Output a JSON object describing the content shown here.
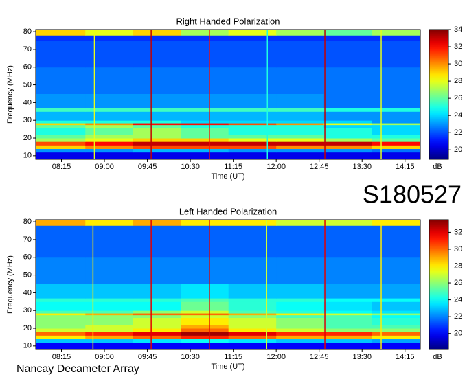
{
  "labels": {
    "event_id": "S180527",
    "source": "Nancay Decameter Array"
  },
  "chart_data": [
    {
      "type": "heatmap",
      "title": "Right Handed Polarization",
      "x_label": "Time (UT)",
      "y_label": "Frequency (MHz)",
      "colorbar_label": "dB",
      "xlim": [
        468,
        871
      ],
      "ylim": [
        8,
        81.2
      ],
      "clim": [
        18.9,
        34
      ],
      "xticks": [
        {
          "value": 495,
          "label": "08:15"
        },
        {
          "value": 540,
          "label": "09:00"
        },
        {
          "value": 585,
          "label": "09:45"
        },
        {
          "value": 630,
          "label": "10:30"
        },
        {
          "value": 675,
          "label": "11:15"
        },
        {
          "value": 720,
          "label": "12:00"
        },
        {
          "value": 765,
          "label": "12:45"
        },
        {
          "value": 810,
          "label": "13:30"
        },
        {
          "value": 855,
          "label": "14:15"
        }
      ],
      "yticks": [
        10,
        20,
        30,
        40,
        50,
        60,
        70,
        80
      ],
      "cticks": [
        20,
        22,
        24,
        26,
        28,
        30,
        32,
        34
      ],
      "x_edges": [
        468,
        520,
        570,
        620,
        670,
        720,
        770,
        820,
        871
      ],
      "y_edges": [
        8,
        12,
        14,
        16,
        18,
        20,
        22,
        26,
        27.5,
        28.5,
        30,
        35,
        37,
        45,
        60,
        75,
        78,
        81.2
      ],
      "values": [
        [
          20.5,
          20.5,
          20.5,
          20.5,
          20.5,
          20.5,
          20.5,
          20.5
        ],
        [
          23,
          23,
          23.5,
          23.5,
          23,
          23,
          23,
          22.5
        ],
        [
          29,
          30,
          31,
          31,
          31,
          30,
          30,
          29
        ],
        [
          31,
          32,
          33,
          33,
          33,
          33,
          33,
          32
        ],
        [
          27,
          28,
          29,
          29,
          28,
          28,
          27,
          26
        ],
        [
          26,
          27,
          27,
          26,
          26,
          26,
          25,
          25
        ],
        [
          25,
          26,
          27,
          26,
          25,
          25,
          25,
          24
        ],
        [
          26,
          27,
          26,
          25,
          25,
          25,
          24,
          24
        ],
        [
          29,
          30,
          32,
          32,
          31,
          30,
          28,
          27
        ],
        [
          25,
          25,
          25,
          24,
          24,
          24,
          24,
          23
        ],
        [
          23.5,
          23.5,
          23.5,
          23.5,
          23.5,
          23.5,
          23,
          23
        ],
        [
          25.5,
          25.5,
          25.5,
          25.5,
          25.5,
          25.5,
          25,
          25
        ],
        [
          23,
          23,
          23,
          23,
          23,
          23,
          22.5,
          22.5
        ],
        [
          22.5,
          22.5,
          22.5,
          22.5,
          22.5,
          22.5,
          22.5,
          22.5
        ],
        [
          22,
          22,
          22,
          22,
          22,
          22,
          22,
          22
        ],
        [
          21.5,
          21.5,
          21.5,
          21.5,
          21.5,
          21.5,
          21.5,
          21.5
        ],
        [
          29,
          28,
          29,
          27,
          28,
          27,
          26,
          27
        ]
      ],
      "vertical_lines": {
        "x": [
          529.5,
          589,
          650,
          710.7,
          771,
          830
        ],
        "values": [
          28,
          33,
          32,
          25,
          33,
          28
        ]
      }
    },
    {
      "type": "heatmap",
      "title": "Left Handed Polarization",
      "x_label": "Time (UT)",
      "y_label": "Frequency (MHz)",
      "colorbar_label": "dB",
      "xlim": [
        468,
        871
      ],
      "ylim": [
        8,
        81.2
      ],
      "clim": [
        18.1,
        33.5
      ],
      "xticks": [
        {
          "value": 495,
          "label": "08:15"
        },
        {
          "value": 540,
          "label": "09:00"
        },
        {
          "value": 585,
          "label": "09:45"
        },
        {
          "value": 630,
          "label": "10:30"
        },
        {
          "value": 675,
          "label": "11:15"
        },
        {
          "value": 720,
          "label": "12:00"
        },
        {
          "value": 765,
          "label": "12:45"
        },
        {
          "value": 810,
          "label": "13:30"
        },
        {
          "value": 855,
          "label": "14:15"
        }
      ],
      "yticks": [
        10,
        20,
        30,
        40,
        50,
        60,
        70,
        80
      ],
      "cticks": [
        20,
        22,
        24,
        26,
        28,
        30,
        32
      ],
      "x_edges": [
        468,
        520,
        570,
        620,
        670,
        720,
        770,
        820,
        871
      ],
      "y_edges": [
        8,
        12,
        14,
        16,
        18,
        20,
        22,
        26,
        27.5,
        28.5,
        30,
        35,
        37,
        45,
        60,
        75,
        78,
        81.2
      ],
      "values": [
        [
          20,
          20,
          20,
          20,
          20,
          20,
          20,
          20
        ],
        [
          23,
          23,
          23.5,
          24,
          23.5,
          23,
          23,
          22.5
        ],
        [
          28,
          29,
          30,
          31,
          30,
          29,
          29,
          28
        ],
        [
          30,
          31,
          32,
          33,
          32,
          31,
          31,
          30
        ],
        [
          27,
          27,
          28,
          30,
          28,
          27,
          26,
          26
        ],
        [
          26,
          27,
          27,
          29,
          27,
          26,
          25,
          25
        ],
        [
          26,
          26,
          27,
          28,
          27,
          26,
          25,
          24.5
        ],
        [
          26,
          26,
          26,
          27,
          26,
          25,
          25,
          24
        ],
        [
          28,
          29,
          30,
          30,
          29,
          28,
          27,
          26
        ],
        [
          25,
          25,
          26,
          27,
          25,
          24.5,
          24,
          23.5
        ],
        [
          24,
          24,
          24,
          25.5,
          24.5,
          24,
          23.5,
          23
        ],
        [
          24.5,
          24.5,
          24.5,
          25,
          24.5,
          24.5,
          24,
          24
        ],
        [
          23,
          23,
          23,
          23.5,
          23,
          23,
          22.5,
          22.5
        ],
        [
          22,
          22,
          22,
          22,
          22,
          22,
          22,
          22
        ],
        [
          21.5,
          21.5,
          21.5,
          21.5,
          21.5,
          21.5,
          21.5,
          21.5
        ],
        [
          21.5,
          21.5,
          21.5,
          21.5,
          21.5,
          21.5,
          21.5,
          21.5
        ],
        [
          29,
          28,
          29,
          28,
          28,
          27,
          27,
          28
        ]
      ],
      "vertical_lines": {
        "x": [
          528,
          589,
          650,
          710,
          771,
          830
        ],
        "values": [
          28,
          32,
          32,
          27,
          32,
          28
        ]
      }
    }
  ]
}
